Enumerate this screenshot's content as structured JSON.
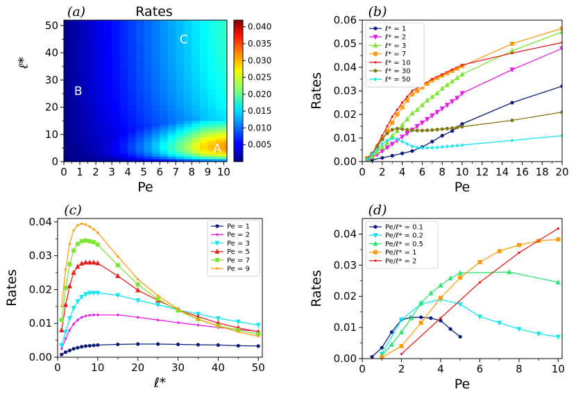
{
  "chart_data": [
    {
      "type": "heatmap",
      "panel": "(a)",
      "title": "Rates",
      "xlabel": "Pe",
      "ylabel": "ℓ*",
      "xlim": [
        0,
        10.2
      ],
      "ylim": [
        0,
        52
      ],
      "xticks": [
        "0",
        "1",
        "2",
        "3",
        "4",
        "5",
        "6",
        "7",
        "8",
        "9",
        "10"
      ],
      "yticks": [
        "0",
        "10",
        "20",
        "30",
        "40",
        "50"
      ],
      "colorbar": {
        "min": 0.0,
        "max": 0.042,
        "ticks": [
          "0.005",
          "0.010",
          "0.015",
          "0.020",
          "0.025",
          "0.030",
          "0.035",
          "0.040"
        ]
      },
      "annotations": [
        {
          "text": "A",
          "pe": 9.6,
          "l": 5
        },
        {
          "text": "B",
          "pe": 0.9,
          "l": 26
        },
        {
          "text": "C",
          "pe": 7.5,
          "l": 45
        }
      ]
    },
    {
      "type": "line",
      "panel": "(b)",
      "xlabel": "Pe",
      "ylabel": "Rates",
      "xlim": [
        0,
        20
      ],
      "ylim": [
        0,
        0.06
      ],
      "xticks": [
        "0",
        "2",
        "4",
        "6",
        "8",
        "10",
        "12",
        "14",
        "16",
        "18",
        "20"
      ],
      "yticks": [
        "0.00",
        "0.01",
        "0.02",
        "0.03",
        "0.04",
        "0.05",
        "0.06"
      ],
      "legend_position": "upper-left",
      "series": [
        {
          "name": "ℓ* = 1",
          "color": "#0a1a78",
          "marker": "circle",
          "x": [
            0.5,
            1,
            2,
            3,
            4,
            5,
            6,
            7,
            8,
            9,
            10,
            15,
            20
          ],
          "y": [
            0.0004,
            0.0008,
            0.0016,
            0.0025,
            0.0035,
            0.0045,
            0.0062,
            0.0085,
            0.011,
            0.013,
            0.016,
            0.025,
            0.032
          ]
        },
        {
          "name": "ℓ* = 2",
          "color": "#e61ae6",
          "marker": "tri-down",
          "x": [
            0.5,
            1,
            1.5,
            2,
            2.5,
            3,
            3.5,
            4,
            4.5,
            5,
            5.5,
            6,
            6.5,
            7,
            7.5,
            8,
            8.5,
            9,
            9.5,
            10,
            15,
            20
          ],
          "y": [
            0.0008,
            0.0018,
            0.003,
            0.0045,
            0.006,
            0.0075,
            0.009,
            0.0105,
            0.012,
            0.0135,
            0.015,
            0.0165,
            0.018,
            0.0195,
            0.021,
            0.0225,
            0.024,
            0.0255,
            0.027,
            0.029,
            0.039,
            0.048
          ]
        },
        {
          "name": "ℓ* = 3",
          "color": "#7de62e",
          "marker": "tri-up",
          "x": [
            0.5,
            1,
            1.5,
            2,
            2.5,
            3,
            3.5,
            4,
            4.5,
            5,
            5.5,
            6,
            6.5,
            7,
            7.5,
            8,
            8.5,
            9,
            9.5,
            10,
            15,
            20
          ],
          "y": [
            0.001,
            0.002,
            0.004,
            0.006,
            0.008,
            0.011,
            0.013,
            0.0155,
            0.018,
            0.0205,
            0.022,
            0.024,
            0.026,
            0.0275,
            0.029,
            0.031,
            0.0325,
            0.034,
            0.0355,
            0.037,
            0.047,
            0.055
          ]
        },
        {
          "name": "ℓ* = 7",
          "color": "#ff9b0f",
          "marker": "square",
          "x": [
            0.5,
            1,
            1.5,
            2,
            2.5,
            3,
            3.5,
            4,
            4.5,
            5,
            5.5,
            6,
            6.5,
            7,
            7.5,
            8,
            8.5,
            9,
            9.5,
            10,
            15,
            20
          ],
          "y": [
            0.0015,
            0.003,
            0.006,
            0.0095,
            0.013,
            0.0165,
            0.02,
            0.023,
            0.026,
            0.0285,
            0.03,
            0.0315,
            0.033,
            0.0345,
            0.0355,
            0.0365,
            0.0375,
            0.0385,
            0.0395,
            0.0405,
            0.05,
            0.0565
          ]
        },
        {
          "name": "ℓ* = 10",
          "color": "#e61e1e",
          "marker": "small-circle",
          "x": [
            0.5,
            1,
            1.5,
            2,
            2.5,
            3,
            3.5,
            4,
            4.5,
            5,
            6,
            7,
            8,
            9,
            10,
            15,
            20
          ],
          "y": [
            0.0015,
            0.0035,
            0.007,
            0.011,
            0.015,
            0.019,
            0.022,
            0.025,
            0.0275,
            0.03,
            0.0325,
            0.035,
            0.037,
            0.039,
            0.041,
            0.046,
            0.0505
          ]
        },
        {
          "name": "ℓ* = 30",
          "color": "#827814",
          "marker": "circle",
          "x": [
            0.5,
            1,
            1.5,
            2,
            2.5,
            3,
            3.5,
            4,
            4.5,
            5,
            5.5,
            6,
            6.5,
            7,
            7.5,
            8,
            8.5,
            9,
            9.5,
            10,
            15,
            20
          ],
          "y": [
            0.001,
            0.0035,
            0.0065,
            0.0095,
            0.012,
            0.0135,
            0.014,
            0.0138,
            0.0135,
            0.0133,
            0.0132,
            0.0132,
            0.0133,
            0.0134,
            0.0136,
            0.0138,
            0.014,
            0.0142,
            0.0145,
            0.0148,
            0.0175,
            0.021
          ]
        },
        {
          "name": "ℓ* = 50",
          "color": "#14e6ef",
          "marker": "diamond",
          "x": [
            0.5,
            1,
            1.5,
            2,
            2.5,
            3,
            3.5,
            4,
            4.5,
            5,
            5.5,
            6,
            6.5,
            7,
            7.5,
            8,
            8.5,
            9,
            9.5,
            10,
            15,
            20
          ],
          "y": [
            0.001,
            0.003,
            0.005,
            0.0075,
            0.009,
            0.0098,
            0.0095,
            0.0085,
            0.0075,
            0.0065,
            0.006,
            0.0058,
            0.0058,
            0.0059,
            0.006,
            0.0062,
            0.0064,
            0.0066,
            0.0068,
            0.007,
            0.009,
            0.011
          ]
        }
      ]
    },
    {
      "type": "line",
      "panel": "(c)",
      "xlabel": "ℓ*",
      "ylabel": "Rates",
      "xlim": [
        0,
        51
      ],
      "ylim": [
        0,
        0.041
      ],
      "xticks": [
        "0",
        "10",
        "20",
        "30",
        "40",
        "50"
      ],
      "yticks": [
        "0.00",
        "0.01",
        "0.02",
        "0.03",
        "0.04"
      ],
      "legend_position": "upper-right",
      "series": [
        {
          "name": "Pe = 1",
          "color": "#0a1a78",
          "marker": "circle",
          "x": [
            1,
            2,
            3,
            4,
            5,
            6,
            7,
            8,
            9,
            10,
            15,
            20,
            25,
            30,
            35,
            40,
            45,
            50
          ],
          "y": [
            0.0008,
            0.0015,
            0.002,
            0.0025,
            0.0028,
            0.0031,
            0.0033,
            0.0034,
            0.0035,
            0.0036,
            0.0038,
            0.0039,
            0.0039,
            0.0038,
            0.0037,
            0.0036,
            0.0034,
            0.0033
          ]
        },
        {
          "name": "Pe = 2",
          "color": "#e61ae6",
          "marker": "small-diamond",
          "x": [
            1,
            2,
            3,
            4,
            5,
            6,
            7,
            8,
            9,
            10,
            15,
            20,
            25,
            30,
            35,
            40,
            45,
            50
          ],
          "y": [
            0.0025,
            0.0055,
            0.008,
            0.0098,
            0.011,
            0.0118,
            0.0122,
            0.0124,
            0.0125,
            0.0125,
            0.0125,
            0.0118,
            0.011,
            0.0102,
            0.0095,
            0.0088,
            0.0082,
            0.0076
          ]
        },
        {
          "name": "Pe = 3",
          "color": "#14e6ef",
          "marker": "tri-down",
          "x": [
            1,
            2,
            3,
            4,
            5,
            6,
            7,
            8,
            9,
            10,
            15,
            20,
            25,
            30,
            35,
            40,
            45,
            50
          ],
          "y": [
            0.0035,
            0.0075,
            0.0115,
            0.0145,
            0.0165,
            0.0178,
            0.0186,
            0.019,
            0.019,
            0.019,
            0.0183,
            0.0168,
            0.0155,
            0.014,
            0.0128,
            0.0115,
            0.0105,
            0.0095
          ]
        },
        {
          "name": "Pe = 5",
          "color": "#e61e1e",
          "marker": "tri-up",
          "x": [
            1,
            2,
            3,
            4,
            5,
            6,
            7,
            8,
            9,
            10,
            15,
            20,
            25,
            30,
            35,
            40,
            45,
            50
          ],
          "y": [
            0.008,
            0.0155,
            0.021,
            0.025,
            0.0268,
            0.0277,
            0.028,
            0.028,
            0.028,
            0.0278,
            0.024,
            0.0198,
            0.0168,
            0.014,
            0.012,
            0.0101,
            0.0087,
            0.0075
          ]
        },
        {
          "name": "Pe = 7",
          "color": "#7de62e",
          "marker": "square",
          "x": [
            1,
            2,
            3,
            4,
            5,
            6,
            7,
            8,
            9,
            10,
            15,
            20,
            25,
            30,
            35,
            40,
            45,
            50
          ],
          "y": [
            0.011,
            0.0205,
            0.0275,
            0.0315,
            0.0335,
            0.0343,
            0.0345,
            0.0343,
            0.034,
            0.0333,
            0.0272,
            0.0215,
            0.0172,
            0.0138,
            0.0112,
            0.0093,
            0.008,
            0.0068
          ]
        },
        {
          "name": "Pe = 9",
          "color": "#ff9b0f",
          "marker": "small-circle",
          "x": [
            1,
            2,
            3,
            4,
            5,
            6,
            7,
            8,
            9,
            10,
            15,
            20,
            25,
            30,
            35,
            40,
            45,
            50
          ],
          "y": [
            0.015,
            0.026,
            0.0335,
            0.0375,
            0.039,
            0.0395,
            0.0392,
            0.0386,
            0.0378,
            0.0368,
            0.0298,
            0.023,
            0.0182,
            0.0142,
            0.0112,
            0.0092,
            0.0075,
            0.0062
          ]
        }
      ]
    },
    {
      "type": "line",
      "panel": "(d)",
      "xlabel": "Pe",
      "ylabel": "Rates",
      "xlim": [
        0,
        10.2
      ],
      "ylim": [
        0,
        0.045
      ],
      "xticks": [
        "0",
        "2",
        "4",
        "6",
        "8",
        "10"
      ],
      "yticks": [
        "0.00",
        "0.01",
        "0.02",
        "0.03",
        "0.04"
      ],
      "legend_position": "upper-left",
      "series": [
        {
          "name": "Pe/ℓ* = 0.1",
          "color": "#0a1a78",
          "marker": "circle",
          "x": [
            0.5,
            1,
            1.5,
            2,
            2.5,
            3,
            3.5,
            4,
            4.5,
            5
          ],
          "y": [
            0.0006,
            0.0035,
            0.0085,
            0.0125,
            0.0132,
            0.0133,
            0.013,
            0.0122,
            0.0095,
            0.007
          ]
        },
        {
          "name": "Pe/ℓ* = 0.2",
          "color": "#14e6ef",
          "marker": "tri-down",
          "x": [
            1,
            2,
            3,
            4,
            5,
            6,
            7,
            8,
            9,
            10
          ],
          "y": [
            0.0015,
            0.0125,
            0.0175,
            0.019,
            0.0175,
            0.0135,
            0.0115,
            0.0095,
            0.008,
            0.007
          ]
        },
        {
          "name": "Pe/ℓ* = 0.5",
          "color": "#29e66e",
          "marker": "tri-up",
          "x": [
            1,
            1.5,
            2,
            2.5,
            3,
            3.5,
            4,
            4.5,
            5,
            7.5,
            10
          ],
          "y": [
            0.001,
            0.0045,
            0.0085,
            0.013,
            0.0178,
            0.021,
            0.0235,
            0.0258,
            0.0275,
            0.0278,
            0.0245
          ]
        },
        {
          "name": "Pe/ℓ* = 1",
          "color": "#ff9b0f",
          "marker": "square",
          "x": [
            1,
            2,
            3,
            4,
            5,
            6,
            7,
            8,
            9,
            10
          ],
          "y": [
            0.0004,
            0.004,
            0.0115,
            0.0195,
            0.026,
            0.031,
            0.0345,
            0.0365,
            0.0378,
            0.0383
          ]
        },
        {
          "name": "Pe/ℓ* = 2",
          "color": "#e61e1e",
          "marker": "small-circle",
          "x": [
            2,
            4,
            6,
            8,
            10
          ],
          "y": [
            0.0015,
            0.013,
            0.0245,
            0.034,
            0.0418
          ]
        }
      ]
    }
  ]
}
